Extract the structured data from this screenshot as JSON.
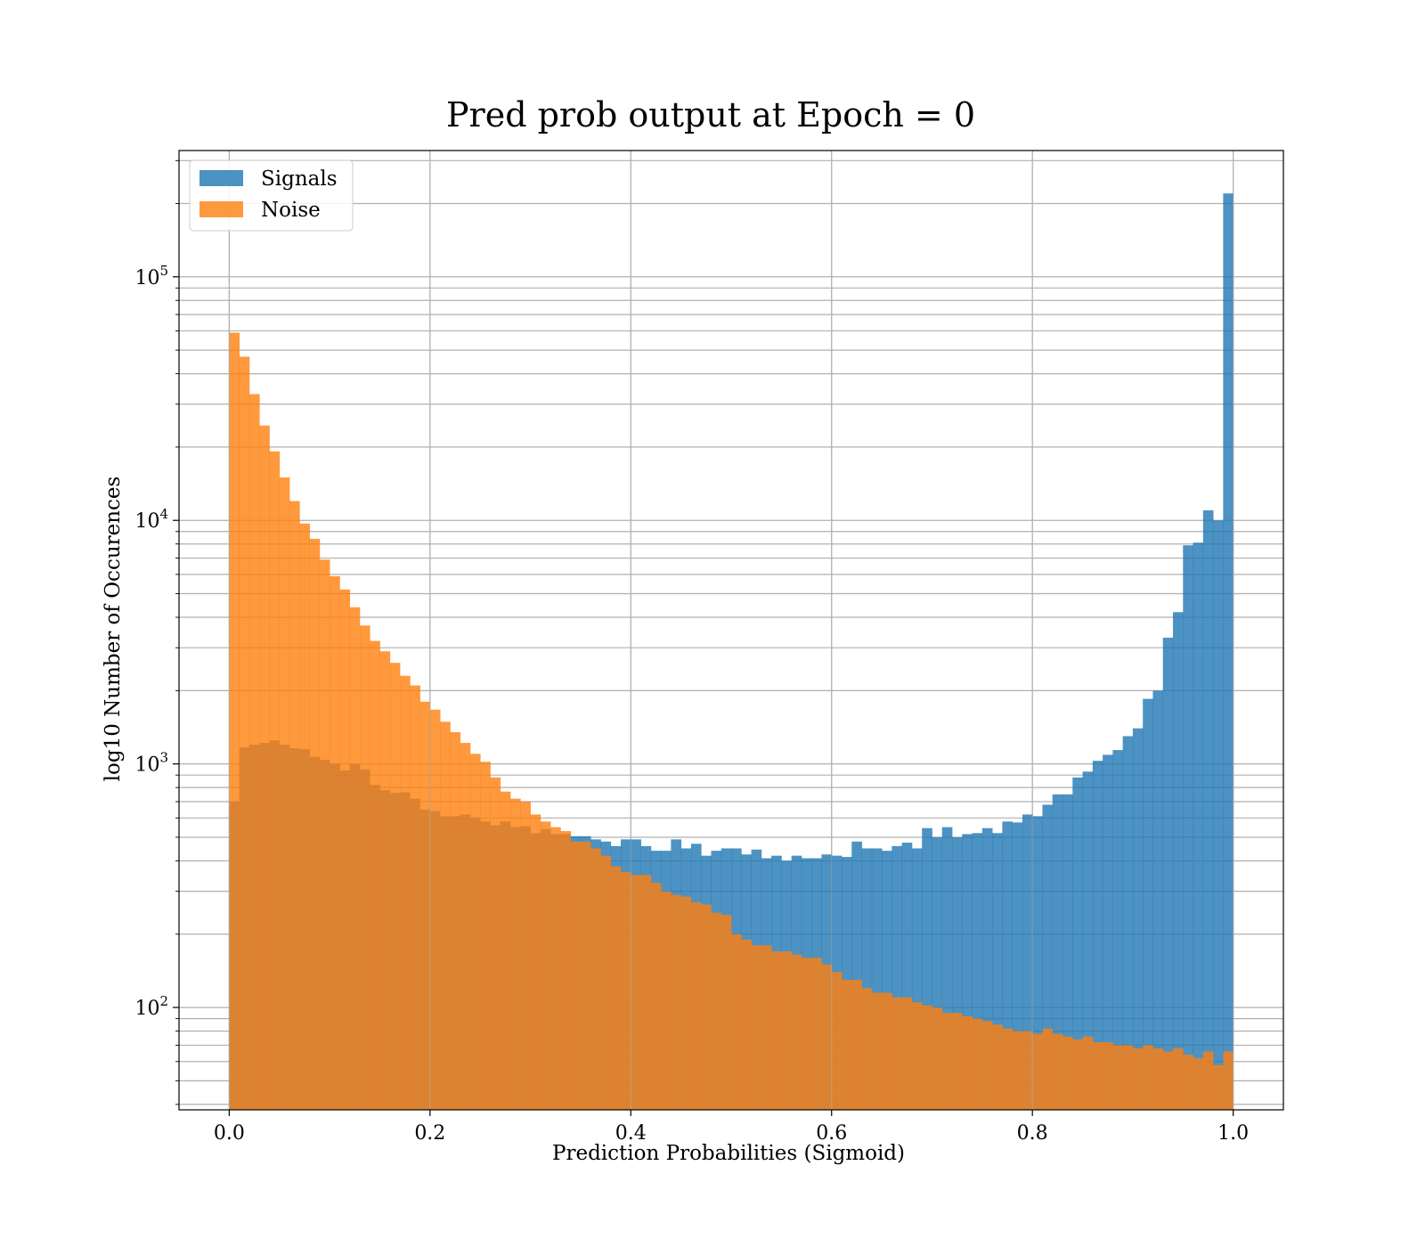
{
  "chart_data": {
    "type": "bar",
    "title": "Pred prob output at Epoch = 0",
    "xlabel": "Prediction Probabilities (Sigmoid)",
    "ylabel": "log10 Number of Occurences",
    "x_ticks": [
      "0.0",
      "0.2",
      "0.4",
      "0.6",
      "0.8",
      "1.0"
    ],
    "y_ticks": [
      {
        "value": 100,
        "base": "10",
        "exp": "2"
      },
      {
        "value": 1000,
        "base": "10",
        "exp": "3"
      },
      {
        "value": 10000,
        "base": "10",
        "exp": "4"
      },
      {
        "value": 100000,
        "base": "10",
        "exp": "5"
      }
    ],
    "xlim": [
      -0.05,
      1.05
    ],
    "ylim": [
      38,
      330000
    ],
    "y_scale": "log",
    "grid": true,
    "legend_position": "upper left",
    "bins": 100,
    "bin_range": [
      0,
      1
    ],
    "series": [
      {
        "name": "Signals",
        "color": "#1f77b4",
        "opacity": 0.8,
        "values": [
          700,
          1170,
          1200,
          1220,
          1250,
          1200,
          1160,
          1150,
          1070,
          1040,
          1000,
          940,
          1000,
          950,
          820,
          780,
          760,
          765,
          720,
          650,
          640,
          610,
          610,
          620,
          600,
          580,
          560,
          580,
          550,
          555,
          520,
          540,
          515,
          515,
          505,
          505,
          490,
          480,
          460,
          490,
          490,
          460,
          440,
          440,
          490,
          450,
          470,
          420,
          440,
          450,
          450,
          425,
          445,
          410,
          420,
          400,
          420,
          410,
          410,
          425,
          420,
          415,
          480,
          450,
          450,
          440,
          460,
          475,
          450,
          545,
          500,
          550,
          500,
          515,
          520,
          545,
          520,
          580,
          575,
          620,
          610,
          680,
          750,
          750,
          880,
          930,
          1030,
          1090,
          1140,
          1300,
          1400,
          1850,
          2000,
          3300,
          4200,
          7900,
          8100,
          11000,
          10000,
          220000
        ]
      },
      {
        "name": "Noise",
        "color": "#ff7f0e",
        "opacity": 0.8,
        "values": [
          59000,
          47000,
          33000,
          24500,
          19200,
          15000,
          12000,
          9700,
          8400,
          6900,
          5900,
          5200,
          4400,
          3700,
          3200,
          2900,
          2600,
          2300,
          2100,
          1800,
          1670,
          1490,
          1350,
          1220,
          1100,
          1020,
          880,
          770,
          720,
          700,
          620,
          580,
          550,
          530,
          480,
          480,
          450,
          420,
          380,
          360,
          350,
          350,
          325,
          300,
          290,
          285,
          270,
          265,
          245,
          240,
          200,
          190,
          180,
          180,
          170,
          170,
          165,
          160,
          160,
          150,
          140,
          130,
          130,
          120,
          115,
          115,
          110,
          110,
          105,
          102,
          100,
          95,
          95,
          92,
          90,
          88,
          85,
          82,
          80,
          80,
          78,
          82,
          78,
          76,
          74,
          76,
          72,
          72,
          70,
          70,
          68,
          70,
          68,
          66,
          68,
          64,
          62,
          66,
          58,
          66
        ]
      }
    ]
  }
}
